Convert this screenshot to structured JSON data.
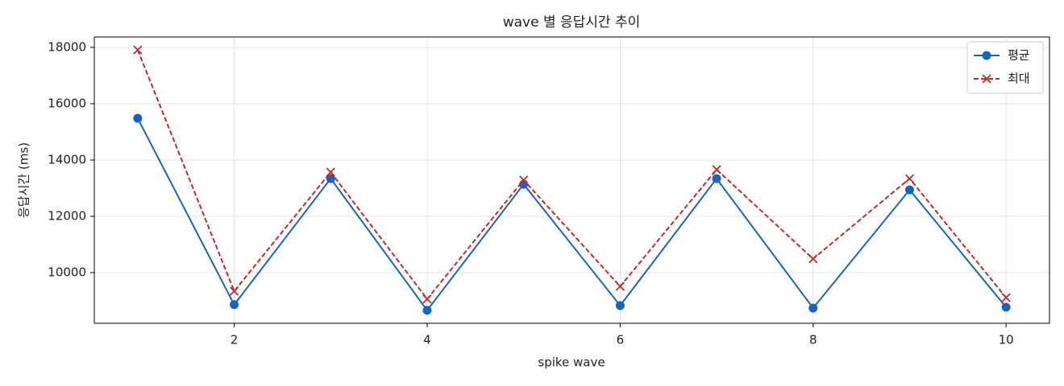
{
  "chart_data": {
    "type": "line",
    "title": "wave 별 응답시간 추이",
    "x_label": "spike wave",
    "y_label": "응답시간 (ms)",
    "x": [
      1,
      2,
      3,
      4,
      5,
      6,
      7,
      8,
      9,
      10
    ],
    "series": [
      {
        "name": "평균",
        "color": "#1565c0",
        "marker": "o",
        "linestyle": "solid",
        "values": [
          15480,
          8860,
          13340,
          8660,
          13140,
          8830,
          13340,
          8740,
          12940,
          8770
        ]
      },
      {
        "name": "최대",
        "color": "#c62828",
        "marker": "x",
        "linestyle": "dashed",
        "values": [
          17910,
          9340,
          13570,
          9060,
          13290,
          9510,
          13660,
          10490,
          13340,
          9110
        ]
      }
    ],
    "xlim": [
      0.55,
      10.45
    ],
    "ylim": [
      8200,
      18370
    ],
    "xticks": [
      2,
      4,
      6,
      8,
      10
    ],
    "yticks": [
      10000,
      12000,
      14000,
      16000,
      18000
    ],
    "grid": true,
    "legend": "upper right"
  }
}
